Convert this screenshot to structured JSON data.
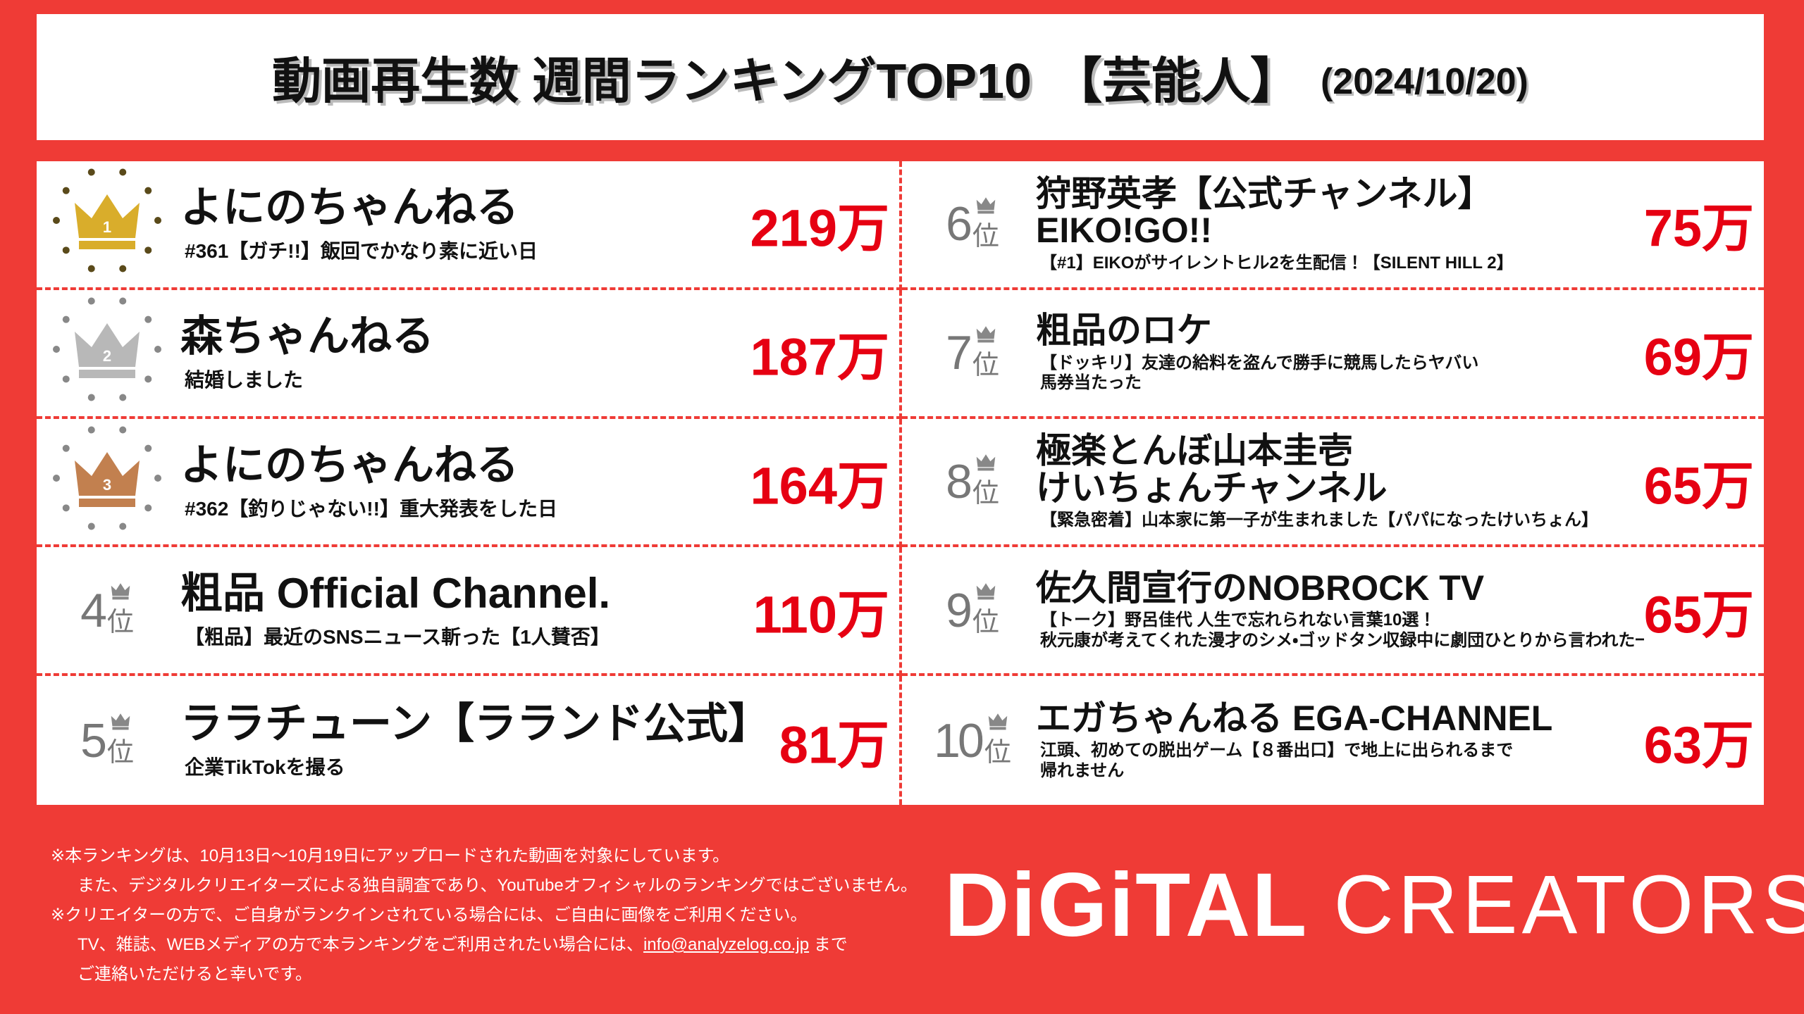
{
  "header": {
    "title_main": "動画再生数 週間ランキングTOP10",
    "title_highlight": "【芸能人】",
    "date": "(2024/10/20)"
  },
  "rank_unit": "位",
  "rankings": [
    {
      "rank": 1,
      "channel": "よにのちゃんねる",
      "video": "#361【ガチ!!】飯回でかなり素に近い日",
      "views": "219万"
    },
    {
      "rank": 2,
      "channel": "森ちゃんねる",
      "video": "結婚しました",
      "views": "187万"
    },
    {
      "rank": 3,
      "channel": "よにのちゃんねる",
      "video": "#362【釣りじゃない!!】重大発表をした日",
      "views": "164万"
    },
    {
      "rank": 4,
      "channel": "粗品 Official Channel.",
      "video": "【粗品】最近のSNSニュース斬った【1人賛否】",
      "views": "110万"
    },
    {
      "rank": 5,
      "channel": "ララチューン【ラランド公式】",
      "video": "企業TikTokを撮る",
      "views": "81万"
    },
    {
      "rank": 6,
      "channel": "狩野英孝【公式チャンネル】\nEIKO!GO!!",
      "video": "【#1】EIKOがサイレントヒル2を生配信！【SILENT HILL 2】",
      "views": "75万"
    },
    {
      "rank": 7,
      "channel": "粗品のロケ",
      "video": "【ドッキリ】友達の給料を盗んで勝手に競馬したらヤバい\n馬券当たった",
      "views": "69万"
    },
    {
      "rank": 8,
      "channel": "極楽とんぼ山本圭壱\nけいちょんチャンネル",
      "video": "【緊急密着】山本家に第一子が生まれました【パパになったけいちょん】",
      "views": "65万"
    },
    {
      "rank": 9,
      "channel": "佐久間宣行のNOBROCK TV",
      "video": "【トーク】野呂佳代 人生で忘れられない言葉10選！\n秋元康が考えてくれた漫才のシメ・ゴッドタン収録中に劇団ひとりから言われた一言",
      "views": "65万"
    },
    {
      "rank": 10,
      "channel": "エガちゃんねる EGA-CHANNEL",
      "video": "江頭、初めての脱出ゲーム【８番出口】で地上に出られるまで\n帰れません",
      "views": "63万"
    }
  ],
  "footer": {
    "notes": [
      "※本ランキングは、10月13日～10月19日にアップロードされた動画を対象にしています。",
      "また、デジタルクリエイターズによる独自調査であり、YouTubeオフィシャルのランキングではございません。",
      "※クリエイターの方で、ご自身がランクインされている場合には、ご自由に画像をご利用ください。",
      "TV、雑誌、WEBメディアの方で本ランキングをご利用されたい場合には、",
      "ご連絡いただけると幸いです。"
    ],
    "email": "info@analyzelog.co.jp",
    "email_after": "まで",
    "logo_bold": "DiGiTAL",
    "logo_light": "CREATORS"
  }
}
